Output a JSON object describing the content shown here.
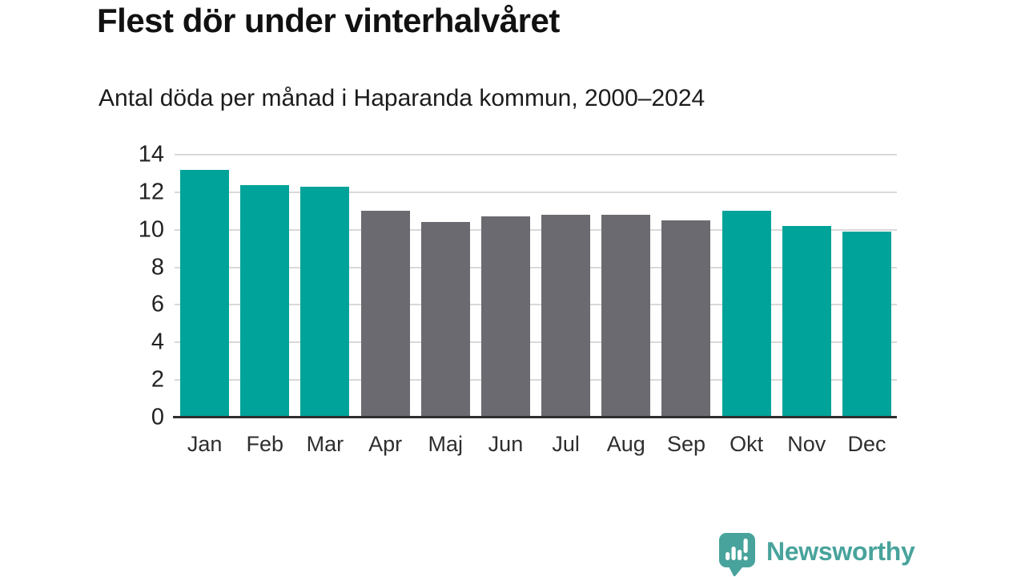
{
  "title": "Flest dör under vinterhalvåret",
  "subtitle": "Antal döda per månad i Haparanda kommun, 2000–2024",
  "footer": {
    "brand": "Newsworthy",
    "logo_icon": "speech-bubble-bar-chart-icon"
  },
  "colors": {
    "winter": "#00a399",
    "summer": "#6b6a70",
    "axis": "#2e2e2e",
    "gridline": "#d9d9d9",
    "brand": "#48a39c",
    "text": "#111111"
  },
  "chart_data": {
    "type": "bar",
    "title": "Flest dör under vinterhalvåret",
    "subtitle": "Antal döda per månad i Haparanda kommun, 2000–2024",
    "categories": [
      "Jan",
      "Feb",
      "Mar",
      "Apr",
      "Maj",
      "Jun",
      "Jul",
      "Aug",
      "Sep",
      "Okt",
      "Nov",
      "Dec"
    ],
    "values": [
      13.2,
      12.4,
      12.3,
      11.0,
      10.4,
      10.7,
      10.8,
      10.8,
      10.5,
      11.0,
      10.2,
      9.9
    ],
    "bar_colors": [
      "winter",
      "winter",
      "winter",
      "summer",
      "summer",
      "summer",
      "summer",
      "summer",
      "summer",
      "winter",
      "winter",
      "winter"
    ],
    "xlabel": "",
    "ylabel": "",
    "ylim": [
      0,
      14
    ],
    "yticks": [
      0,
      2,
      4,
      6,
      8,
      10,
      12,
      14
    ],
    "grid": true,
    "legend": false
  }
}
